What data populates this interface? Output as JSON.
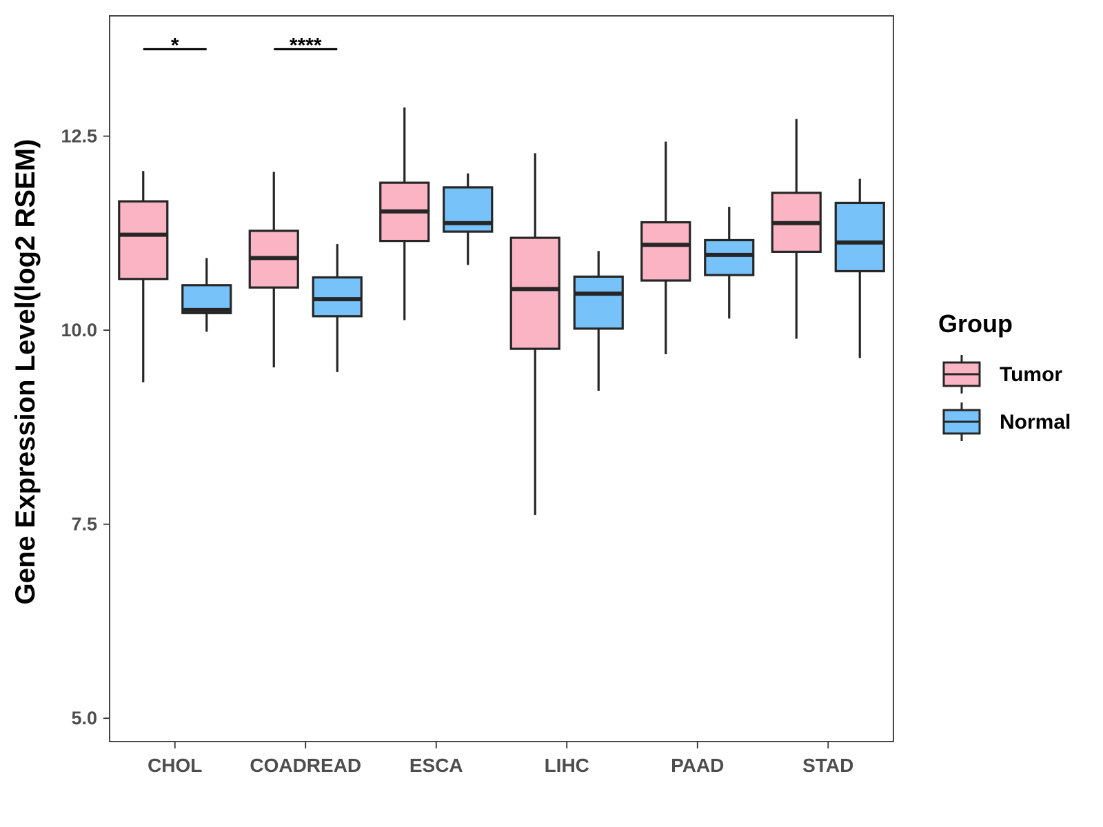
{
  "chart_data": {
    "type": "boxplot",
    "title": "",
    "xlabel": "",
    "ylabel": "Gene Expression Level(log2 RSEM)",
    "ylim": [
      4.7,
      14.05
    ],
    "yticks": [
      5.0,
      7.5,
      10.0,
      12.5
    ],
    "ytick_labels": [
      "5.0",
      "7.5",
      "10.0",
      "12.5"
    ],
    "categories": [
      "CHOL",
      "COADREAD",
      "ESCA",
      "LIHC",
      "PAAD",
      "STAD"
    ],
    "legend": {
      "title": "Group",
      "position": "right",
      "entries": [
        "Tumor",
        "Normal"
      ]
    },
    "colors": {
      "Tumor": "#FBB4C3",
      "Normal": "#77C2F8",
      "outline": "#262626"
    },
    "series": [
      {
        "name": "Tumor",
        "boxes": [
          {
            "category": "CHOL",
            "min": 9.33,
            "q1": 10.66,
            "median": 11.23,
            "q3": 11.66,
            "max": 12.05
          },
          {
            "category": "COADREAD",
            "min": 9.52,
            "q1": 10.55,
            "median": 10.93,
            "q3": 11.28,
            "max": 12.04
          },
          {
            "category": "ESCA",
            "min": 10.13,
            "q1": 11.15,
            "median": 11.53,
            "q3": 11.9,
            "max": 12.87
          },
          {
            "category": "LIHC",
            "min": 7.62,
            "q1": 9.76,
            "median": 10.53,
            "q3": 11.19,
            "max": 12.28
          },
          {
            "category": "PAAD",
            "min": 9.69,
            "q1": 10.64,
            "median": 11.1,
            "q3": 11.39,
            "max": 12.43
          },
          {
            "category": "STAD",
            "min": 9.89,
            "q1": 11.01,
            "median": 11.38,
            "q3": 11.77,
            "max": 12.72
          }
        ]
      },
      {
        "name": "Normal",
        "boxes": [
          {
            "category": "CHOL",
            "min": 9.98,
            "q1": 10.22,
            "median": 10.26,
            "q3": 10.58,
            "max": 10.93
          },
          {
            "category": "COADREAD",
            "min": 9.46,
            "q1": 10.18,
            "median": 10.4,
            "q3": 10.68,
            "max": 11.11
          },
          {
            "category": "ESCA",
            "min": 10.84,
            "q1": 11.27,
            "median": 11.38,
            "q3": 11.84,
            "max": 12.02
          },
          {
            "category": "LIHC",
            "min": 9.22,
            "q1": 10.02,
            "median": 10.47,
            "q3": 10.69,
            "max": 11.02
          },
          {
            "category": "PAAD",
            "min": 10.15,
            "q1": 10.71,
            "median": 10.97,
            "q3": 11.16,
            "max": 11.59
          },
          {
            "category": "STAD",
            "min": 9.64,
            "q1": 10.76,
            "median": 11.13,
            "q3": 11.64,
            "max": 11.95
          }
        ]
      }
    ],
    "annotations": [
      {
        "category": "CHOL",
        "label": "*",
        "y": 13.62
      },
      {
        "category": "COADREAD",
        "label": "****",
        "y": 13.62
      }
    ]
  }
}
